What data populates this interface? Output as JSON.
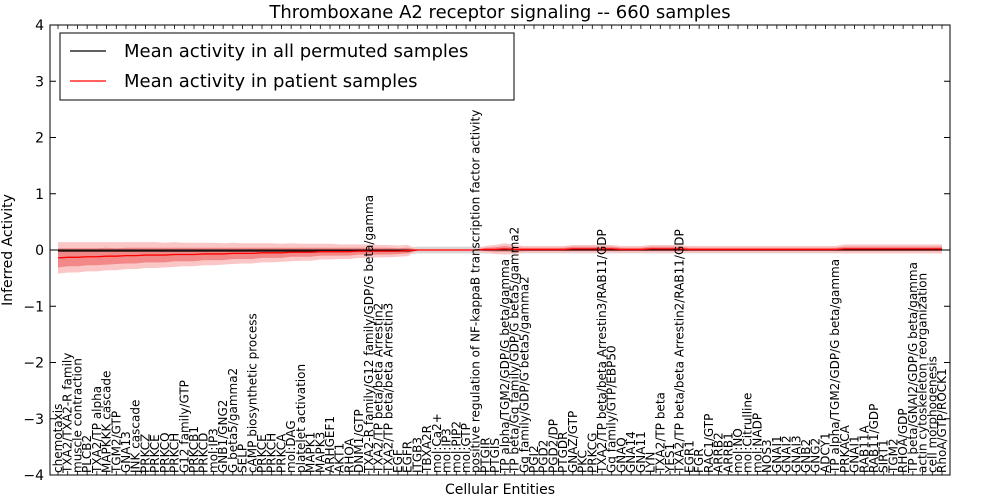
{
  "chart_data": {
    "type": "line",
    "title": "Thromboxane A2 receptor signaling -- 660 samples",
    "xlabel": "Cellular Entities",
    "ylabel": "Inferred Activity",
    "ylim": [
      -4,
      4
    ],
    "yticks": [
      -4,
      -3,
      -2,
      -1,
      0,
      1,
      2,
      3,
      4
    ],
    "ytick_labels": [
      "−4",
      "−3",
      "−2",
      "−1",
      "0",
      "1",
      "2",
      "3",
      "4"
    ],
    "grid": false,
    "legend_position": "top-left",
    "legend": [
      {
        "label": "Mean activity in all permuted samples",
        "color": "#000000"
      },
      {
        "label": "Mean activity in patient samples",
        "color": "#ff0000"
      }
    ],
    "categories": [
      "chemotaxis",
      "TXA2/TXA2-R family",
      "muscle contraction",
      "PLCB2",
      "TXA2/TP alpha",
      "MAPKKK cascade",
      "TGM2/GTP",
      "GNA13",
      "JNK cascade",
      "PRKCZ",
      "PRKCE",
      "PRKCQ",
      "PRKCH",
      "G12 family/GTP",
      "PRKCB1",
      "PRKCD",
      "mol:IP3",
      "GNB1/GNG2",
      "G beta5/gamma2",
      "SELP",
      "cAMP biosynthetic process",
      "PRKCE",
      "PRKCH",
      "PRKCA",
      "mol:DAG",
      "platelet activation",
      "MAPK1",
      "MAPK3",
      "ARHGEF1",
      "AKT1",
      "RHOA",
      "DNM1/GTP",
      "TXA2-R family/G12 family/GDP/G beta/gamma",
      "TXA2/TP beta/beta Arrestin2",
      "TXA2/TP beta/beta Arrestin3",
      "EGF",
      "EGFR",
      "ITGB3",
      "TBXA2R",
      "mol:Ca2+",
      "mol:IP3",
      "mol:PIP2",
      "mol:GTP",
      "positive regulation of NF-kappaB transcription factor activity",
      "PTGIR",
      "PTGIS",
      "TP alpha/TGM2/GDP/G beta/gamma",
      "TP beta/Gq family/GDP/G beta5/gamma2",
      "Gq family/GDP/G beta5/gamma2",
      "PGI2",
      "PGD2",
      "PGD2/DP",
      "PTGDR",
      "GNAZ/GTP",
      "PKC",
      "PRKCG",
      "TXA2/TP beta/beta Arrestin3/RAB11/GDP",
      "Gq family/GTP/EBP50",
      "GNAQ",
      "GNA14",
      "GNA11",
      "LYN",
      "TXA2/TP beta",
      "YES1",
      "TXA2/TP beta/beta Arrestin2/RAB11/GDP",
      "EGR1",
      "FGR",
      "RAC1/GTP",
      "ARRB2",
      "ARRB1",
      "mol:NO",
      "mol:Citrulline",
      "mol:NADP",
      "NOS3",
      "GNAI1",
      "GNAI2",
      "GNAI3",
      "GNB2",
      "GNG2",
      "ADCY1",
      "TP alpha/TGM2/GDP/G beta/gamma",
      "PRKACA",
      "GNAI1",
      "RAB11A",
      "RAB11/GDP",
      "SIRT1",
      "TGM2",
      "RHOA/GDP",
      "TP beta/GNAI2/GDP/G beta/gamma",
      "actin cytoskeleton reorganization",
      "cell morphogenesis",
      "RhoA/GTP/ROCK1"
    ],
    "series": [
      {
        "name": "Mean activity in all permuted samples",
        "color": "#000000",
        "values": [
          -0.02,
          -0.02,
          -0.02,
          -0.02,
          -0.02,
          -0.02,
          -0.02,
          -0.02,
          -0.02,
          -0.02,
          -0.02,
          -0.02,
          -0.02,
          -0.02,
          -0.02,
          -0.02,
          -0.02,
          -0.02,
          -0.02,
          -0.02,
          -0.02,
          -0.02,
          -0.02,
          -0.02,
          -0.02,
          -0.02,
          -0.02,
          -0.02,
          -0.02,
          -0.02,
          -0.02,
          -0.02,
          -0.02,
          -0.02,
          -0.02,
          -0.02,
          -0.02,
          0,
          0,
          0,
          0,
          0,
          0,
          0,
          0,
          0,
          0,
          0,
          0,
          0,
          0,
          0,
          0,
          0,
          0,
          0,
          0,
          0,
          0,
          0,
          0,
          0,
          0,
          0,
          0,
          0,
          0,
          0,
          0,
          0,
          0,
          0,
          0,
          0,
          0,
          0,
          0,
          0,
          0,
          0,
          0,
          0,
          0,
          0,
          0,
          0,
          0,
          0,
          0,
          0,
          0,
          0
        ]
      },
      {
        "name": "Mean activity in patient samples",
        "color": "#ff0000",
        "values": [
          -0.14,
          -0.13,
          -0.13,
          -0.12,
          -0.12,
          -0.11,
          -0.11,
          -0.1,
          -0.1,
          -0.09,
          -0.09,
          -0.09,
          -0.08,
          -0.08,
          -0.08,
          -0.07,
          -0.07,
          -0.07,
          -0.06,
          -0.06,
          -0.06,
          -0.05,
          -0.05,
          -0.05,
          -0.04,
          -0.04,
          -0.04,
          -0.03,
          -0.03,
          -0.03,
          -0.03,
          -0.02,
          -0.02,
          -0.02,
          -0.02,
          -0.02,
          -0.01,
          0,
          0,
          0,
          0,
          0,
          0,
          0,
          0.01,
          0.01,
          0.02,
          0.01,
          0.01,
          0.01,
          0.01,
          0.01,
          0.01,
          0.02,
          0.02,
          0.02,
          0.02,
          0.02,
          0.01,
          0.01,
          0.01,
          0.02,
          0.02,
          0.02,
          0.02,
          0.01,
          0.01,
          0.01,
          0.01,
          0.01,
          0.01,
          0.01,
          0.01,
          0.01,
          0.01,
          0.01,
          0.01,
          0.01,
          0.01,
          0.01,
          0.01,
          0.02,
          0.02,
          0.02,
          0.02,
          0.02,
          0.02,
          0.02,
          0.02,
          0.02,
          0.02,
          0.02
        ]
      }
    ],
    "band_inner_halfwidth": [
      0.17,
      0.16,
      0.16,
      0.15,
      0.15,
      0.15,
      0.14,
      0.14,
      0.14,
      0.13,
      0.13,
      0.13,
      0.12,
      0.12,
      0.12,
      0.11,
      0.11,
      0.11,
      0.1,
      0.1,
      0.1,
      0.09,
      0.09,
      0.09,
      0.08,
      0.08,
      0.08,
      0.07,
      0.07,
      0.07,
      0.07,
      0.06,
      0.06,
      0.06,
      0.06,
      0.05,
      0.05,
      0.01,
      0.01,
      0.01,
      0.01,
      0.01,
      0.01,
      0.01,
      0.03,
      0.04,
      0.05,
      0.04,
      0.03,
      0.03,
      0.03,
      0.03,
      0.03,
      0.04,
      0.04,
      0.04,
      0.04,
      0.04,
      0.03,
      0.03,
      0.03,
      0.04,
      0.04,
      0.04,
      0.04,
      0.03,
      0.03,
      0.03,
      0.03,
      0.03,
      0.03,
      0.03,
      0.03,
      0.03,
      0.03,
      0.03,
      0.03,
      0.03,
      0.03,
      0.03,
      0.03,
      0.04,
      0.04,
      0.04,
      0.04,
      0.04,
      0.04,
      0.04,
      0.04,
      0.04,
      0.04,
      0.04
    ],
    "band_outer_halfwidth": [
      0.28,
      0.27,
      0.27,
      0.26,
      0.26,
      0.25,
      0.25,
      0.24,
      0.24,
      0.23,
      0.23,
      0.22,
      0.22,
      0.21,
      0.21,
      0.2,
      0.2,
      0.19,
      0.19,
      0.18,
      0.18,
      0.17,
      0.17,
      0.16,
      0.16,
      0.15,
      0.15,
      0.14,
      0.14,
      0.13,
      0.13,
      0.12,
      0.12,
      0.11,
      0.11,
      0.1,
      0.1,
      0.02,
      0.02,
      0.02,
      0.02,
      0.02,
      0.02,
      0.02,
      0.06,
      0.08,
      0.1,
      0.08,
      0.06,
      0.06,
      0.06,
      0.06,
      0.06,
      0.07,
      0.07,
      0.07,
      0.07,
      0.07,
      0.06,
      0.06,
      0.06,
      0.07,
      0.07,
      0.07,
      0.07,
      0.06,
      0.06,
      0.06,
      0.06,
      0.06,
      0.06,
      0.06,
      0.06,
      0.06,
      0.06,
      0.06,
      0.06,
      0.06,
      0.06,
      0.06,
      0.06,
      0.08,
      0.08,
      0.08,
      0.08,
      0.08,
      0.08,
      0.08,
      0.08,
      0.08,
      0.08,
      0.08
    ],
    "grey_band_halfwidth": 0.06,
    "colors": {
      "patient": "#ff0000",
      "permuted": "#000000",
      "band_inner": "#f07878",
      "band_outer": "#fbc6c6",
      "grey_band": "#cccccc"
    }
  }
}
